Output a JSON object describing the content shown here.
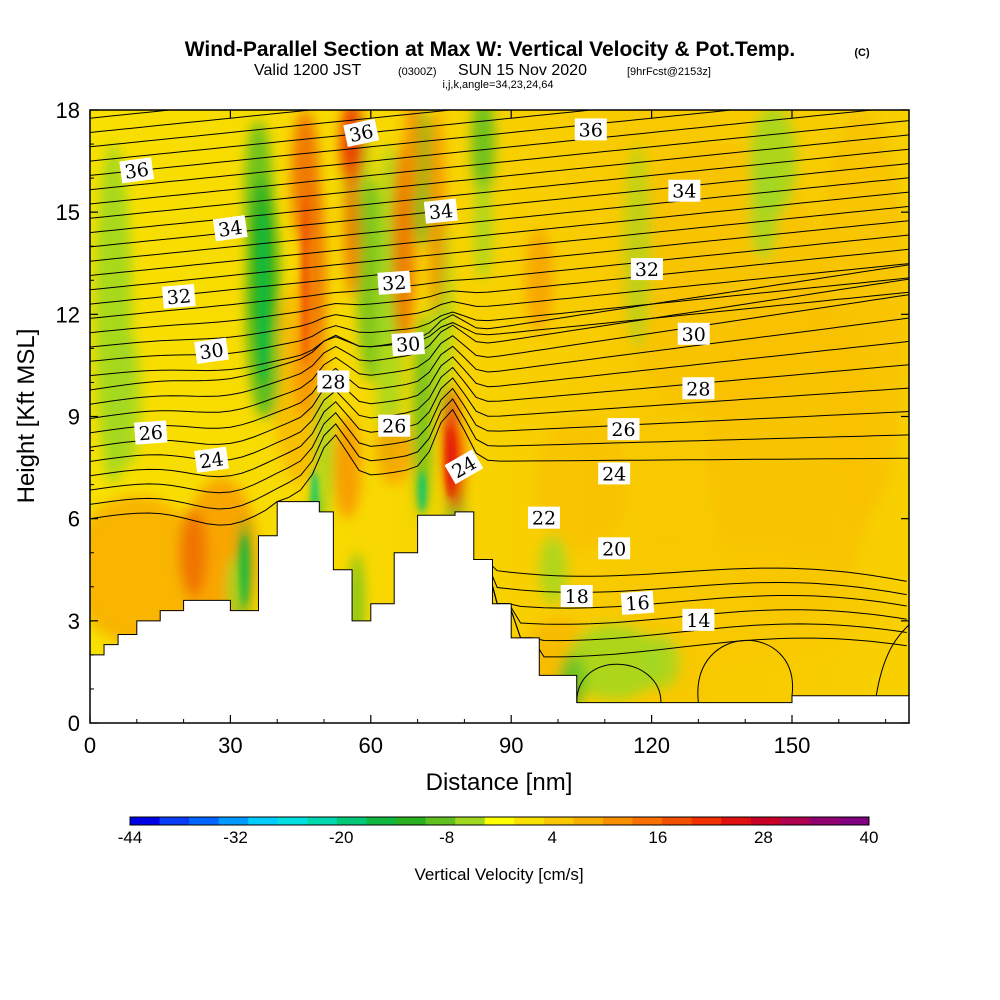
{
  "chart_data": {
    "type": "heatmap",
    "title": "Wind-Parallel Section at Max W: Vertical Velocity & Pot.Temp.",
    "title_mark": "(C)",
    "subtitle": {
      "valid": "Valid 1200 JST",
      "utc": "(0300Z)",
      "date": "SUN 15 Nov 2020",
      "fcst": "[9hrFcst@2153z]",
      "section": "i,j,k,angle=34,23,24,64"
    },
    "xlabel": "Distance [nm]",
    "ylabel": "Height [Kft MSL]",
    "xlim": [
      0,
      175
    ],
    "ylim": [
      0,
      18
    ],
    "xticks": [
      0,
      30,
      60,
      90,
      120,
      150
    ],
    "yticks": [
      0,
      3,
      6,
      9,
      12,
      15,
      18
    ],
    "field": "Vertical Velocity [cm/s]",
    "contour_field": "Potential Temperature",
    "colorbar": {
      "label": "Vertical Velocity [cm/s]",
      "range": [
        -44,
        40
      ],
      "tick_labels": [
        "-44",
        "-32",
        "-20",
        "-8",
        "4",
        "16",
        "28",
        "40"
      ],
      "colors": [
        "#0000e6",
        "#0a3cf5",
        "#0066ff",
        "#0099ff",
        "#00ccff",
        "#00e0e0",
        "#00d8b0",
        "#00c878",
        "#10b840",
        "#28b020",
        "#60c020",
        "#a0d820",
        "#ffff00",
        "#f8e000",
        "#f8c800",
        "#f8b000",
        "#f89000",
        "#f87000",
        "#f05000",
        "#f03000",
        "#e01010",
        "#c80028",
        "#b00050",
        "#900070",
        "#800080"
      ]
    },
    "contour_labels": [
      "36",
      "36",
      "36",
      "34",
      "34",
      "34",
      "32",
      "32",
      "32",
      "30",
      "30",
      "30",
      "28",
      "28",
      "26",
      "26",
      "26",
      "24",
      "24",
      "24",
      "22",
      "20",
      "18",
      "16",
      "14"
    ],
    "terrain_kft": [
      [
        0,
        2
      ],
      [
        3,
        2.3
      ],
      [
        6,
        2.6
      ],
      [
        10,
        3
      ],
      [
        15,
        3.3
      ],
      [
        20,
        3.6
      ],
      [
        30,
        3.3
      ],
      [
        36,
        5.5
      ],
      [
        40,
        6.5
      ],
      [
        49,
        6.2
      ],
      [
        52,
        4.5
      ],
      [
        56,
        3
      ],
      [
        60,
        3.5
      ],
      [
        65,
        5
      ],
      [
        70,
        6.1
      ],
      [
        78,
        6.2
      ],
      [
        82,
        4.8
      ],
      [
        86,
        3.5
      ],
      [
        90,
        2.5
      ],
      [
        96,
        1.4
      ],
      [
        104,
        0.6
      ],
      [
        120,
        0.6
      ],
      [
        145,
        0.6
      ],
      [
        150,
        0.8
      ],
      [
        175,
        0.8
      ]
    ]
  }
}
